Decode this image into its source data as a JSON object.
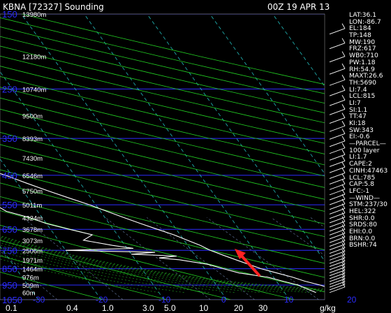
{
  "header": {
    "station": "KBNA [72327] Sounding",
    "time": "00Z 19 APR 13"
  },
  "chart_data": {
    "type": "skew-t",
    "pressure_ticks": [
      "150",
      "250",
      "350",
      "450",
      "550",
      "650",
      "750",
      "850",
      "950",
      "1050"
    ],
    "pressure_values": [
      150,
      250,
      350,
      450,
      550,
      650,
      750,
      850,
      950,
      1050
    ],
    "height_labels": [
      {
        "p": 150,
        "text": "13980m"
      },
      {
        "p": 200,
        "text": "12180m"
      },
      {
        "p": 250,
        "text": "10740m"
      },
      {
        "p": 300,
        "text": "9500m"
      },
      {
        "p": 350,
        "text": "8393m"
      },
      {
        "p": 400,
        "text": "7430m"
      },
      {
        "p": 450,
        "text": "6546m"
      },
      {
        "p": 500,
        "text": "5750m"
      },
      {
        "p": 550,
        "text": "5011m"
      },
      {
        "p": 600,
        "text": "4324m"
      },
      {
        "p": 650,
        "text": "3678m"
      },
      {
        "p": 700,
        "text": "3073m"
      },
      {
        "p": 750,
        "text": "2506m"
      },
      {
        "p": 800,
        "text": "1971m"
      },
      {
        "p": 850,
        "text": "1464m"
      },
      {
        "p": 900,
        "text": "976m"
      },
      {
        "p": 950,
        "text": "509m"
      },
      {
        "p": 1000,
        "text": "60m"
      }
    ],
    "temp_ticks": [
      "-40",
      "-30",
      "-20",
      "-10",
      "0",
      "10",
      "20",
      "30",
      "40",
      "50"
    ],
    "temp_values": [
      -40,
      -30,
      -20,
      -10,
      0,
      10,
      20,
      30,
      40,
      50
    ],
    "mixing_ticks": [
      "0.1",
      "0.4",
      "1.0",
      "3.0",
      "5.0",
      "10",
      "20",
      "30"
    ],
    "units_label": "g/kg",
    "temperature_profile": [
      [
        1000,
        20
      ],
      [
        975,
        18
      ],
      [
        950,
        16.5
      ],
      [
        925,
        14.5
      ],
      [
        900,
        13
      ],
      [
        875,
        11
      ],
      [
        850,
        9
      ],
      [
        825,
        7.5
      ],
      [
        800,
        6
      ],
      [
        775,
        4.5
      ],
      [
        750,
        3
      ],
      [
        725,
        2
      ],
      [
        700,
        0.5
      ],
      [
        675,
        -1
      ],
      [
        650,
        -3
      ],
      [
        625,
        -5
      ],
      [
        600,
        -7
      ],
      [
        575,
        -9
      ],
      [
        550,
        -11
      ],
      [
        525,
        -13.5
      ],
      [
        500,
        -16
      ],
      [
        475,
        -18.5
      ],
      [
        450,
        -21
      ],
      [
        425,
        -24
      ],
      [
        400,
        -27
      ],
      [
        375,
        -30
      ],
      [
        350,
        -33.5
      ],
      [
        325,
        -37
      ],
      [
        300,
        -41
      ],
      [
        275,
        -45
      ],
      [
        250,
        -49
      ],
      [
        225,
        -52
      ],
      [
        200,
        -55
      ],
      [
        175,
        -56
      ],
      [
        160,
        -55
      ],
      [
        150,
        -57
      ]
    ],
    "dewpoint_profile": [
      [
        1000,
        15
      ],
      [
        950,
        13
      ],
      [
        925,
        11
      ],
      [
        900,
        9
      ],
      [
        875,
        5
      ],
      [
        850,
        3
      ],
      [
        825,
        1
      ],
      [
        800,
        -3
      ],
      [
        790,
        -6
      ],
      [
        780,
        -3
      ],
      [
        770,
        -10
      ],
      [
        760,
        -6
      ],
      [
        750,
        -20
      ],
      [
        740,
        -9
      ],
      [
        725,
        -12
      ],
      [
        700,
        -16
      ],
      [
        675,
        -14
      ],
      [
        650,
        -17
      ],
      [
        625,
        -20
      ],
      [
        600,
        -22
      ],
      [
        575,
        -25
      ],
      [
        550,
        -26
      ],
      [
        525,
        -30
      ],
      [
        500,
        -33
      ],
      [
        475,
        -30
      ],
      [
        450,
        -35
      ],
      [
        425,
        -40
      ],
      [
        400,
        -44
      ],
      [
        375,
        -46
      ],
      [
        350,
        -50
      ],
      [
        325,
        -53
      ],
      [
        300,
        -57
      ],
      [
        250,
        -62
      ],
      [
        200,
        -67
      ],
      [
        150,
        -72
      ]
    ],
    "indices": [
      "LAT:36.1",
      "LON:-86.7",
      "EL:184",
      "TP:148",
      "MW:190",
      "FRZ:617",
      "WB0:710",
      "PW:1.18",
      "RH:54.9",
      "MAXT:26.6",
      "TH:5690",
      "LI:7.4",
      "LCL:815",
      "LI:7",
      "SI:1.1",
      "TT:47",
      "KI:18",
      "SW:343",
      "EI:-0.6",
      "—PARCEL—",
      "100 layer",
      "LI:1.7",
      "CAPE:2",
      "CINH:47463",
      "LCL:785",
      "CAP:5.8",
      "LFC:-1",
      "—WIND—",
      "STM:237/30",
      "HEL:322",
      "SHR:0.0",
      "SRDS:80",
      "EHI:0.0",
      "BRN:0.0",
      "BSHR:74"
    ]
  },
  "colors": {
    "background": "#000000",
    "isobar": "#2c2cff",
    "isotherm": "#22bbbb",
    "dry_adiabat": "#22cc22",
    "moist_adiabat": "#22aa22",
    "mixing_ratio": "#6a80aa",
    "profile": "#ffffff",
    "arrow": "#ff2222"
  }
}
